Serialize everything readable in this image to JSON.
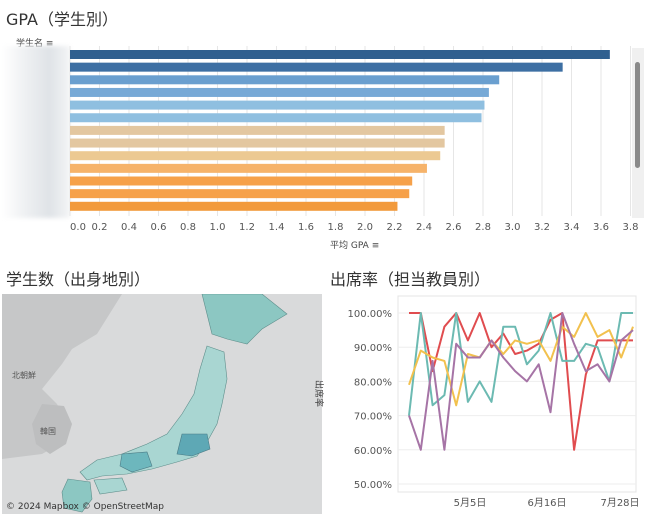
{
  "gpa": {
    "title": "GPA（学生別）",
    "row_header": "学生名 ≡",
    "x_axis_label": "平均 GPA ≡"
  },
  "map": {
    "title": "学生数（出身地別）",
    "label_north_korea": "北朝鮮",
    "label_korea": "韓国",
    "attribution": "© 2024 Mapbox © OpenStreetMap"
  },
  "attendance": {
    "title": "出席率（担当教員別）",
    "y_axis_label": "出席率"
  },
  "colors": {
    "blue_dark": "#2f5f8f",
    "blue": "#6a9fcf",
    "blue_light": "#8fbfe0",
    "tan": "#e3c7a0",
    "orange": "#f6a14a",
    "map_teal": "#8cc7c2",
    "map_land_gray": "#c8c8c8",
    "map_water": "#dcdcdc",
    "line_red": "#e04c4f",
    "line_teal": "#6cbab2",
    "line_yellow": "#f2c14e",
    "line_purple": "#a674a6"
  },
  "chart_data": [
    {
      "type": "bar",
      "orientation": "horizontal",
      "title": "GPA（学生別）",
      "xlabel": "平均 GPA",
      "ylabel": "学生名",
      "xlim": [
        0,
        3.9
      ],
      "xticks": [
        "0.0",
        "0.2",
        "0.4",
        "0.6",
        "0.8",
        "1.0",
        "1.2",
        "1.4",
        "1.6",
        "1.8",
        "2.0",
        "2.2",
        "2.4",
        "2.6",
        "2.8",
        "3.0",
        "3.2",
        "3.4",
        "3.6",
        "3.8"
      ],
      "grid": true,
      "values": [
        3.66,
        3.34,
        2.91,
        2.84,
        2.81,
        2.79,
        2.54,
        2.54,
        2.51,
        2.42,
        2.32,
        2.3,
        2.22
      ],
      "bar_colors": [
        "#2f5f8f",
        "#3d6fa3",
        "#6a9fcf",
        "#77a9d6",
        "#8fbfe0",
        "#8fbfe0",
        "#e3c7a0",
        "#e3c7a0",
        "#ecc992",
        "#f6b36a",
        "#f6a14a",
        "#f6a14a",
        "#f29a3c"
      ]
    },
    {
      "type": "line",
      "title": "出席率（担当教員別）",
      "ylabel": "出席率",
      "ylim": [
        0.5,
        1.0
      ],
      "yticks": [
        "100.00%",
        "90.00%",
        "80.00%",
        "70.00%",
        "60.00%",
        "50.00%"
      ],
      "xticks": [
        "5月5日",
        "6月16日",
        "7月28日"
      ],
      "x_count": 20,
      "series": [
        {
          "color": "#e04c4f",
          "values": [
            1.0,
            1.0,
            0.83,
            0.96,
            1.0,
            0.92,
            1.0,
            0.9,
            0.94,
            0.88,
            0.89,
            0.91,
            0.98,
            1.0,
            0.6,
            0.82,
            0.92,
            0.92,
            0.92,
            0.92
          ]
        },
        {
          "color": "#6cbab2",
          "values": [
            0.7,
            1.0,
            0.73,
            0.76,
            1.0,
            0.74,
            0.8,
            0.74,
            0.96,
            0.96,
            0.85,
            0.89,
            1.0,
            0.86,
            0.86,
            0.91,
            0.9,
            0.8,
            1.0,
            1.0
          ]
        },
        {
          "color": "#f2c14e",
          "values": [
            0.79,
            0.89,
            0.87,
            0.86,
            0.73,
            0.88,
            0.87,
            0.92,
            0.88,
            0.92,
            0.91,
            0.92,
            0.86,
            0.96,
            0.93,
            1.0,
            0.93,
            0.95,
            0.87,
            0.96
          ]
        },
        {
          "color": "#a674a6",
          "values": [
            0.7,
            0.6,
            0.86,
            0.6,
            0.91,
            0.87,
            0.87,
            0.92,
            0.87,
            0.83,
            0.8,
            0.85,
            0.71,
            1.0,
            0.91,
            0.83,
            0.85,
            0.8,
            0.92,
            0.95
          ]
        }
      ]
    }
  ]
}
